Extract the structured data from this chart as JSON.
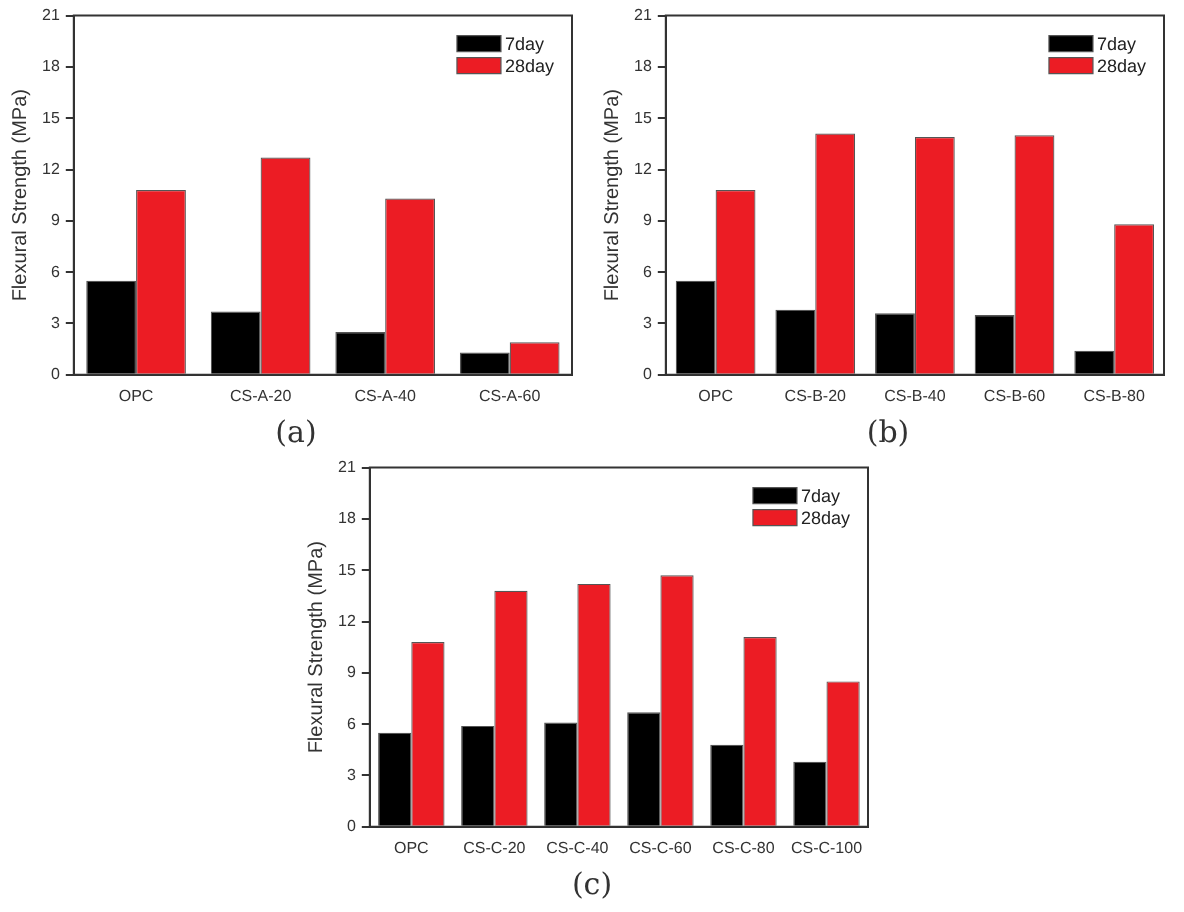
{
  "chart_data": [
    {
      "type": "bar",
      "ylabel": "Flexural Strength (MPa)",
      "categories": [
        "OPC",
        "CS-A-20",
        "CS-A-40",
        "CS-A-60"
      ],
      "series": [
        {
          "name": "7day",
          "color": "#000000",
          "values": [
            5.5,
            3.7,
            2.5,
            1.3
          ]
        },
        {
          "name": "28day",
          "color": "#ec1c24",
          "values": [
            10.8,
            12.7,
            10.3,
            1.9
          ]
        }
      ],
      "ylim": [
        0,
        21
      ],
      "yticks": [
        0,
        3,
        6,
        9,
        12,
        15,
        18,
        21
      ],
      "grid": false,
      "legend": "top right",
      "annotations": [
        "(a)"
      ]
    },
    {
      "type": "bar",
      "ylabel": "Flexural Strength (MPa)",
      "categories": [
        "OPC",
        "CS-B-20",
        "CS-B-40",
        "CS-B-60",
        "CS-B-80"
      ],
      "series": [
        {
          "name": "7day",
          "color": "#000000",
          "values": [
            5.5,
            3.8,
            3.6,
            3.5,
            1.4
          ]
        },
        {
          "name": "28day",
          "color": "#ec1c24",
          "values": [
            10.8,
            14.1,
            13.9,
            14.0,
            8.8
          ]
        }
      ],
      "ylim": [
        0,
        21
      ],
      "yticks": [
        0,
        3,
        6,
        9,
        12,
        15,
        18,
        21
      ],
      "grid": false,
      "legend": "top right",
      "annotations": [
        "(b)"
      ]
    },
    {
      "type": "bar",
      "ylabel": "Flexural Strength (MPa)",
      "categories": [
        "OPC",
        "CS-C-20",
        "CS-C-40",
        "CS-C-60",
        "CS-C-80",
        "CS-C-100"
      ],
      "series": [
        {
          "name": "7day",
          "color": "#000000",
          "values": [
            5.5,
            5.9,
            6.1,
            6.7,
            4.8,
            3.8
          ]
        },
        {
          "name": "28day",
          "color": "#ec1c24",
          "values": [
            10.8,
            13.8,
            14.2,
            14.7,
            11.1,
            8.5
          ]
        }
      ],
      "ylim": [
        0,
        21
      ],
      "yticks": [
        0,
        3,
        6,
        9,
        12,
        15,
        18,
        21
      ],
      "grid": false,
      "legend": "top right",
      "annotations": [
        "(c)"
      ]
    }
  ]
}
